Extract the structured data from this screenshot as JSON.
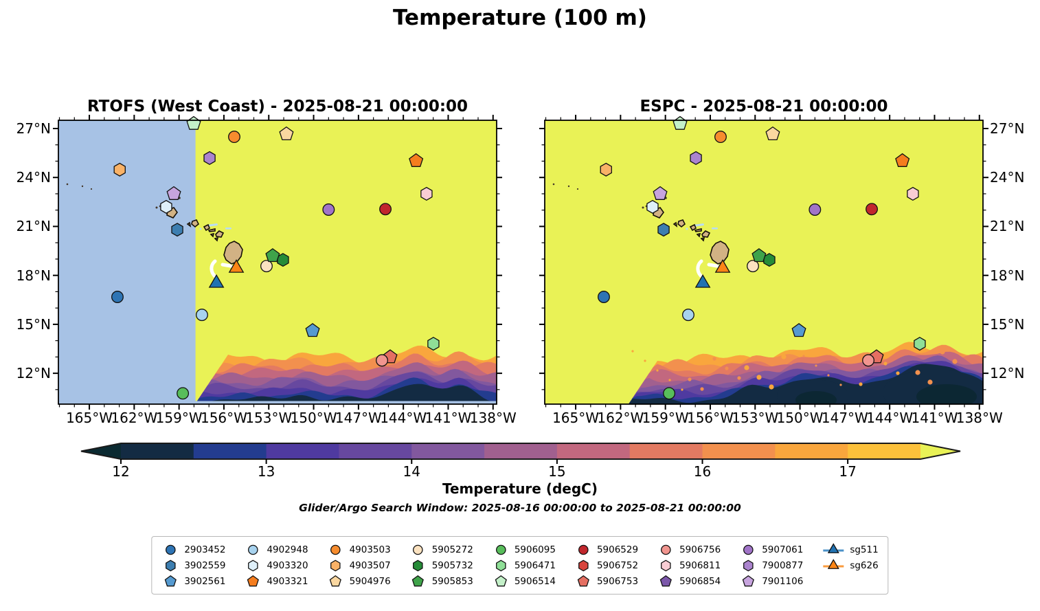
{
  "title": "Temperature (100 m)",
  "annotation": "Glider/Argo Search Window: 2025-08-16 00:00:00 to 2025-08-21 00:00:00",
  "panels": [
    {
      "id": "rtofs",
      "title": "RTOFS (West Coast) - 2025-08-21 00:00:00",
      "masked_west": true
    },
    {
      "id": "espc",
      "title": "ESPC - 2025-08-21 00:00:00",
      "masked_west": false
    }
  ],
  "colors": {
    "warm_background": "#e9f256",
    "mask_blue": "#a7c2e5",
    "land_tan": "#d2b284",
    "coastline": "#151008",
    "lake_blue": "#b9ddf1",
    "track_white": "#ffffff",
    "marker_edge": "#111111",
    "dark_blob": "#0c2733"
  },
  "chart_data": {
    "type": "scatter",
    "subtype": "geographic-map-two-panels",
    "extent": {
      "lon_min": -167.07,
      "lon_max": -137.76,
      "lat_min": 10.11,
      "lat_max": 27.505
    },
    "axes": {
      "lon_major_ticks": [
        -165,
        -162,
        -159,
        -156,
        -153,
        -150,
        -147,
        -144,
        -141,
        -138
      ],
      "lon_tick_labels": [
        "165°W",
        "162°W",
        "159°W",
        "156°W",
        "153°W",
        "150°W",
        "147°W",
        "144°W",
        "141°W",
        "138°W"
      ],
      "lat_major_ticks": [
        27,
        24,
        21,
        18,
        15,
        12
      ],
      "lat_tick_labels": [
        "27°N",
        "24°N",
        "21°N",
        "18°N",
        "15°N",
        "12°N"
      ],
      "minor_tick_interval_deg": 1
    },
    "colorbar": {
      "label": "Temperature (degC)",
      "ticks": [
        12,
        13,
        14,
        15,
        16,
        17
      ],
      "tick_labels": [
        "12",
        "13",
        "14",
        "15",
        "16",
        "17"
      ],
      "vmin": 12,
      "vmax": 17.5,
      "segment_step": 0.5,
      "segment_colors": [
        "#132b43",
        "#233c8f",
        "#4f3aa0",
        "#67489f",
        "#82589e",
        "#a1608f",
        "#c2687f",
        "#e37a62",
        "#f2904e",
        "#f9a63d",
        "#fcc13b"
      ],
      "under_color": "#0b2a31",
      "over_color": "#e9f256"
    },
    "points": [
      {
        "id": "2903452",
        "shape": "circle",
        "color": "#2e74b4",
        "lon": -163.12,
        "lat": 16.68
      },
      {
        "id": "3902559",
        "shape": "hexagon",
        "color": "#3d7eb0",
        "lon": -159.12,
        "lat": 20.8
      },
      {
        "id": "3902561",
        "shape": "pentagon",
        "color": "#559ad0",
        "lon": -150.07,
        "lat": 14.61
      },
      {
        "id": "4902948",
        "shape": "circle",
        "color": "#a8d3ef",
        "lon": -157.47,
        "lat": 15.58
      },
      {
        "id": "4903320",
        "shape": "hexagon",
        "color": "#dff0fa",
        "lon": -159.86,
        "lat": 22.2
      },
      {
        "id": "4903321",
        "shape": "pentagon",
        "color": "#f57d1e",
        "lon": -143.15,
        "lat": 25.02
      },
      {
        "id": "4903503",
        "shape": "circle",
        "color": "#f68c2e",
        "lon": -155.31,
        "lat": 26.49
      },
      {
        "id": "4903507",
        "shape": "hexagon",
        "color": "#f9b267",
        "lon": -162.97,
        "lat": 24.48
      },
      {
        "id": "5904976",
        "shape": "pentagon",
        "color": "#fad7a0",
        "lon": -151.82,
        "lat": 26.66
      },
      {
        "id": "5905272",
        "shape": "circle",
        "color": "#fbe2c0",
        "lon": -153.15,
        "lat": 18.57
      },
      {
        "id": "5905732",
        "shape": "hexagon",
        "color": "#268c38",
        "lon": -152.05,
        "lat": 18.95
      },
      {
        "id": "5905853",
        "shape": "pentagon",
        "color": "#3fa34a",
        "lon": -152.74,
        "lat": 19.2
      },
      {
        "id": "5906095",
        "shape": "circle",
        "color": "#58bd5b",
        "lon": -158.75,
        "lat": 10.77
      },
      {
        "id": "5906471",
        "shape": "hexagon",
        "color": "#8fdf97",
        "lon": -141.99,
        "lat": 13.81
      },
      {
        "id": "5906514",
        "shape": "pentagon",
        "color": "#c4f0c9",
        "lon": -158.02,
        "lat": 27.3
      },
      {
        "id": "5906529",
        "shape": "circle",
        "color": "#c1272d",
        "lon": -145.2,
        "lat": 22.06
      },
      {
        "id": "5906752",
        "shape": "hexagon",
        "color": "#d8453e",
        "lon": null,
        "lat": null
      },
      {
        "id": "5906753",
        "shape": "pentagon",
        "color": "#e56f62",
        "lon": -144.88,
        "lat": 13.0
      },
      {
        "id": "5906756",
        "shape": "circle",
        "color": "#f1958f",
        "lon": -145.43,
        "lat": 12.79
      },
      {
        "id": "5906811",
        "shape": "hexagon",
        "color": "#f9cdd4",
        "lon": -142.45,
        "lat": 23.0
      },
      {
        "id": "5906854",
        "shape": "pentagon",
        "color": "#7b57a9",
        "lon": null,
        "lat": null
      },
      {
        "id": "5907061",
        "shape": "circle",
        "color": "#a174c8",
        "lon": -149.0,
        "lat": 22.03
      },
      {
        "id": "7900877",
        "shape": "hexagon",
        "color": "#ab84ce",
        "lon": -156.96,
        "lat": 25.19
      },
      {
        "id": "7901106",
        "shape": "pentagon",
        "color": "#c7a4de",
        "lon": -159.35,
        "lat": 23.0
      }
    ],
    "gliders": [
      {
        "id": "sg511",
        "shape": "triangle",
        "color": "#2172b2",
        "line_color": "#4a90c8",
        "lon": -156.5,
        "lat": 17.52
      },
      {
        "id": "sg626",
        "shape": "triangle",
        "color": "#fd8516",
        "line_color": "#fa9b3d",
        "lon": -155.17,
        "lat": 18.44
      }
    ],
    "rtofs_mask_east_edge_lon": -157.9
  }
}
